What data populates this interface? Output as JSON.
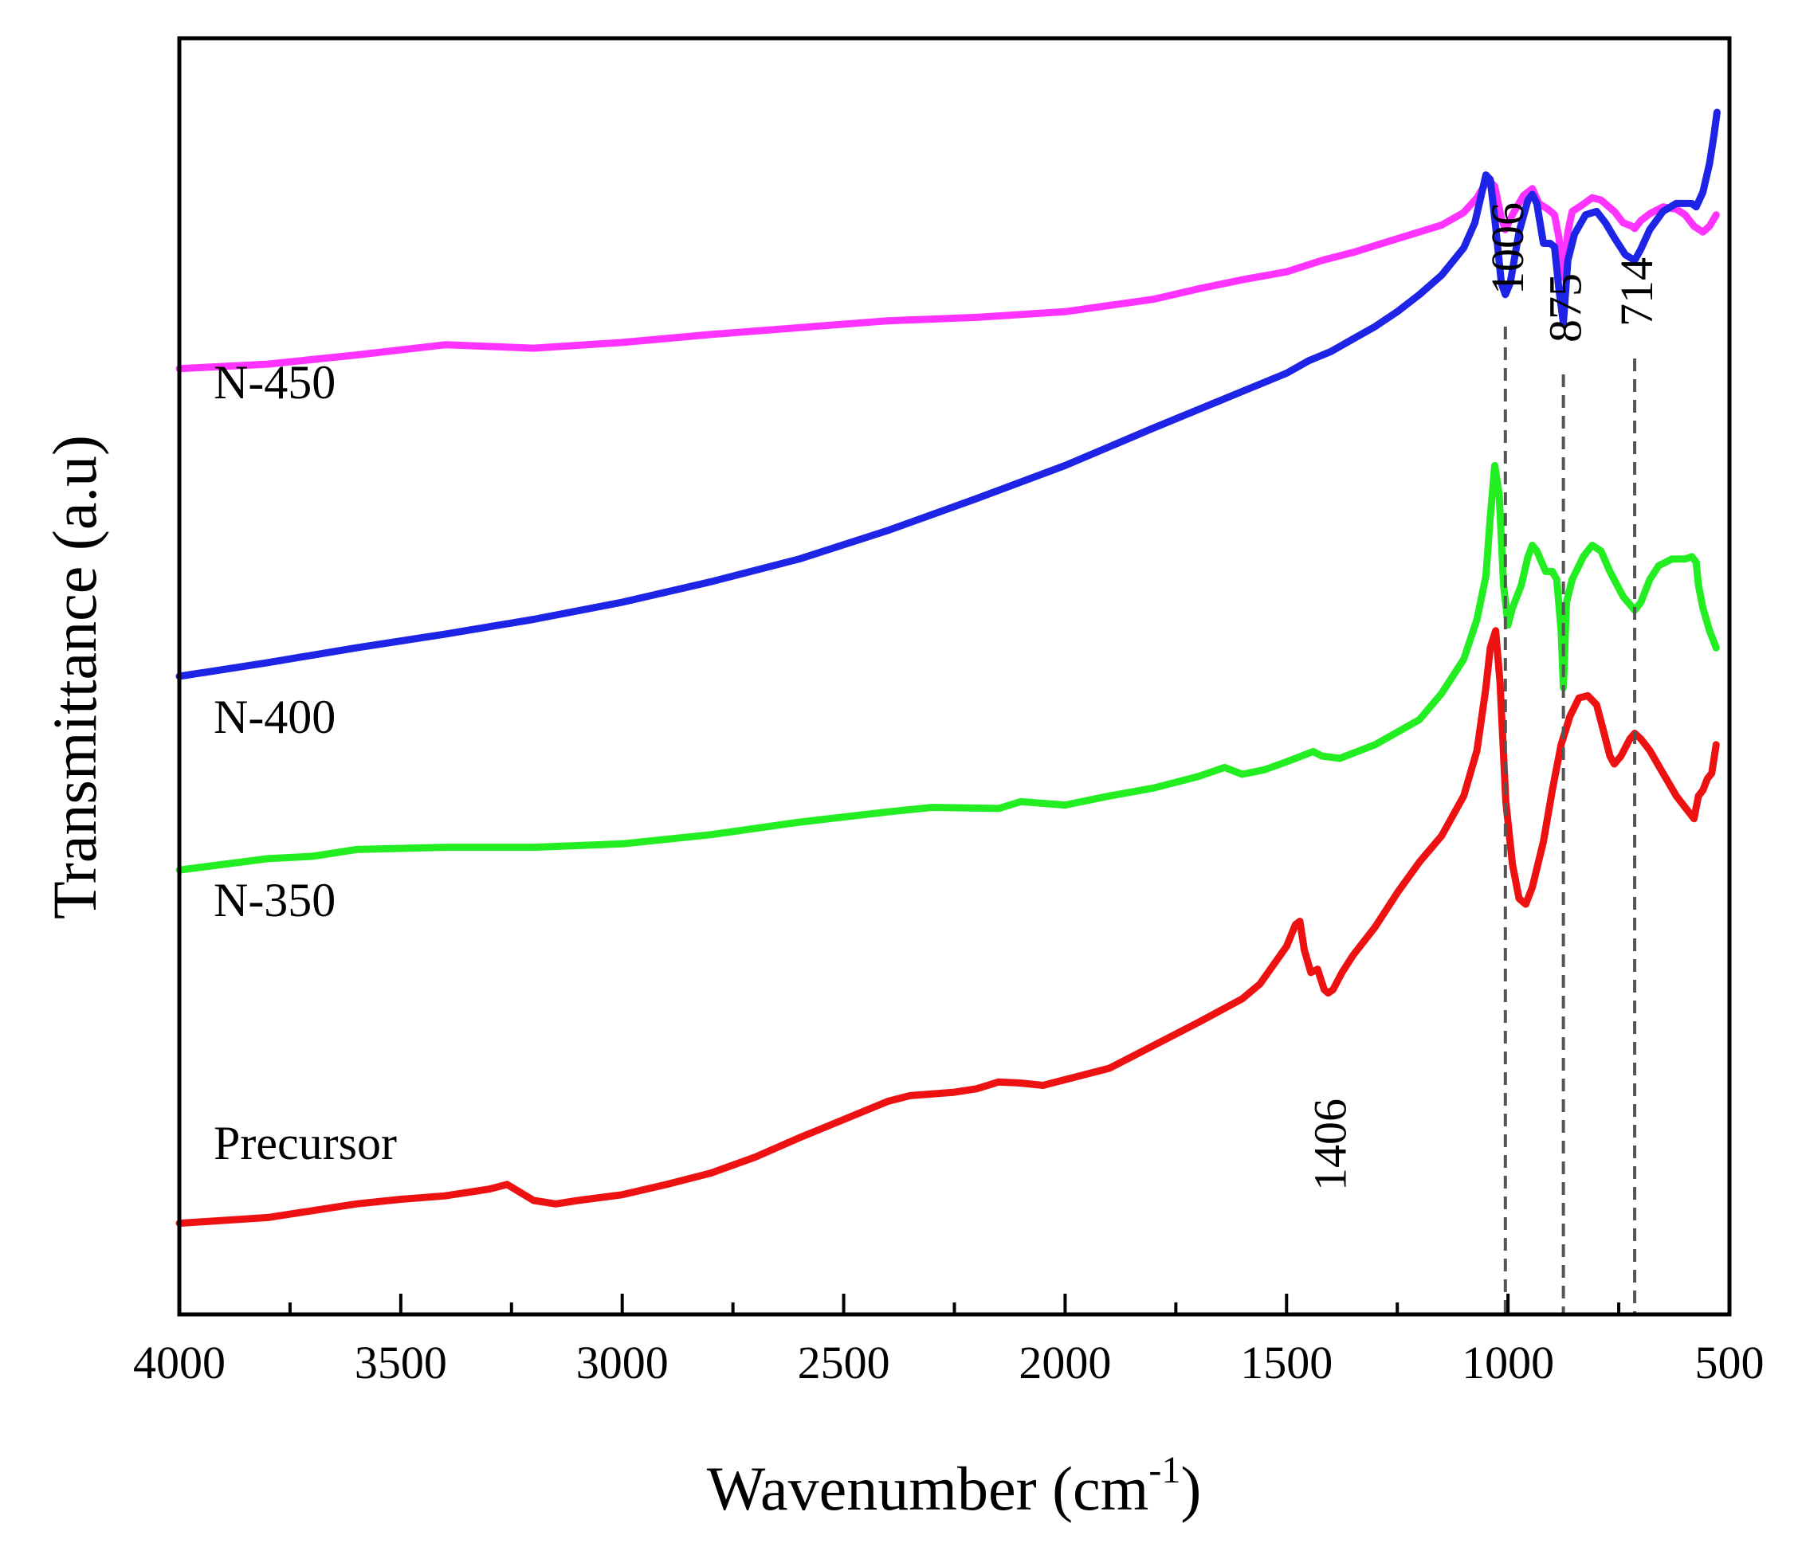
{
  "chart_data": {
    "type": "line",
    "title": "",
    "xlabel": "Wavenumber (cm",
    "xlabel_sup": "-1",
    "xlabel_tail": ")",
    "ylabel": "Transmittance (a.u)",
    "xlim": [
      4000,
      500
    ],
    "x_reversed": true,
    "y_ticks_shown": false,
    "x_ticks": [
      "4000",
      "3500",
      "3000",
      "2500",
      "2000",
      "1500",
      "1000",
      "500"
    ],
    "x_tick_values": [
      4000,
      3500,
      3000,
      2500,
      2000,
      1500,
      1000,
      500
    ],
    "grid": false,
    "legend": "inline labels at left",
    "series": [
      {
        "name": "N-450",
        "color": "#ff33ff",
        "points": [
          [
            4000,
            0.83
          ],
          [
            3800,
            0.834
          ],
          [
            3600,
            0.842
          ],
          [
            3400,
            0.851
          ],
          [
            3200,
            0.848
          ],
          [
            3000,
            0.853
          ],
          [
            2800,
            0.86
          ],
          [
            2600,
            0.866
          ],
          [
            2400,
            0.872
          ],
          [
            2200,
            0.875
          ],
          [
            2000,
            0.88
          ],
          [
            1800,
            0.891
          ],
          [
            1700,
            0.9
          ],
          [
            1600,
            0.908
          ],
          [
            1500,
            0.915
          ],
          [
            1420,
            0.925
          ],
          [
            1350,
            0.932
          ],
          [
            1250,
            0.944
          ],
          [
            1150,
            0.956
          ],
          [
            1100,
            0.967
          ],
          [
            1070,
            0.98
          ],
          [
            1045,
            0.996
          ],
          [
            1030,
            0.99
          ],
          [
            1015,
            0.962
          ],
          [
            1006,
            0.952
          ],
          [
            990,
            0.965
          ],
          [
            965,
            0.982
          ],
          [
            945,
            0.988
          ],
          [
            930,
            0.975
          ],
          [
            910,
            0.97
          ],
          [
            895,
            0.965
          ],
          [
            885,
            0.945
          ],
          [
            875,
            0.91
          ],
          [
            865,
            0.95
          ],
          [
            855,
            0.968
          ],
          [
            835,
            0.973
          ],
          [
            810,
            0.98
          ],
          [
            790,
            0.978
          ],
          [
            760,
            0.968
          ],
          [
            740,
            0.958
          ],
          [
            720,
            0.955
          ],
          [
            714,
            0.953
          ],
          [
            700,
            0.96
          ],
          [
            680,
            0.966
          ],
          [
            650,
            0.972
          ],
          [
            620,
            0.97
          ],
          [
            600,
            0.965
          ],
          [
            580,
            0.955
          ],
          [
            560,
            0.95
          ],
          [
            545,
            0.955
          ],
          [
            530,
            0.965
          ]
        ]
      },
      {
        "name": "N-400",
        "color": "#1d24e6",
        "points": [
          [
            4000,
            0.56
          ],
          [
            3800,
            0.572
          ],
          [
            3600,
            0.585
          ],
          [
            3400,
            0.597
          ],
          [
            3200,
            0.61
          ],
          [
            3000,
            0.625
          ],
          [
            2800,
            0.643
          ],
          [
            2600,
            0.663
          ],
          [
            2400,
            0.688
          ],
          [
            2200,
            0.716
          ],
          [
            2000,
            0.745
          ],
          [
            1800,
            0.778
          ],
          [
            1600,
            0.81
          ],
          [
            1500,
            0.826
          ],
          [
            1450,
            0.837
          ],
          [
            1400,
            0.845
          ],
          [
            1350,
            0.856
          ],
          [
            1300,
            0.867
          ],
          [
            1250,
            0.88
          ],
          [
            1200,
            0.895
          ],
          [
            1150,
            0.912
          ],
          [
            1100,
            0.936
          ],
          [
            1075,
            0.958
          ],
          [
            1060,
            0.983
          ],
          [
            1050,
            1.0
          ],
          [
            1040,
            0.996
          ],
          [
            1028,
            0.955
          ],
          [
            1015,
            0.905
          ],
          [
            1006,
            0.895
          ],
          [
            995,
            0.905
          ],
          [
            975,
            0.95
          ],
          [
            955,
            0.978
          ],
          [
            945,
            0.983
          ],
          [
            935,
            0.975
          ],
          [
            920,
            0.94
          ],
          [
            905,
            0.94
          ],
          [
            895,
            0.937
          ],
          [
            885,
            0.9
          ],
          [
            875,
            0.87
          ],
          [
            865,
            0.925
          ],
          [
            850,
            0.948
          ],
          [
            825,
            0.965
          ],
          [
            800,
            0.968
          ],
          [
            780,
            0.958
          ],
          [
            760,
            0.945
          ],
          [
            735,
            0.93
          ],
          [
            714,
            0.925
          ],
          [
            700,
            0.935
          ],
          [
            680,
            0.952
          ],
          [
            650,
            0.968
          ],
          [
            620,
            0.975
          ],
          [
            600,
            0.975
          ],
          [
            585,
            0.975
          ],
          [
            575,
            0.972
          ],
          [
            560,
            0.985
          ],
          [
            545,
            1.01
          ],
          [
            535,
            1.035
          ],
          [
            528,
            1.055
          ]
        ]
      },
      {
        "name": "N-350",
        "color": "#22ee22",
        "points": [
          [
            4000,
            0.39
          ],
          [
            3800,
            0.4
          ],
          [
            3700,
            0.402
          ],
          [
            3600,
            0.408
          ],
          [
            3400,
            0.41
          ],
          [
            3200,
            0.41
          ],
          [
            3000,
            0.413
          ],
          [
            2800,
            0.421
          ],
          [
            2600,
            0.432
          ],
          [
            2400,
            0.441
          ],
          [
            2300,
            0.445
          ],
          [
            2150,
            0.444
          ],
          [
            2100,
            0.45
          ],
          [
            2000,
            0.447
          ],
          [
            1900,
            0.455
          ],
          [
            1800,
            0.462
          ],
          [
            1700,
            0.472
          ],
          [
            1640,
            0.48
          ],
          [
            1600,
            0.474
          ],
          [
            1550,
            0.478
          ],
          [
            1500,
            0.485
          ],
          [
            1440,
            0.494
          ],
          [
            1420,
            0.49
          ],
          [
            1380,
            0.488
          ],
          [
            1300,
            0.5
          ],
          [
            1200,
            0.522
          ],
          [
            1150,
            0.545
          ],
          [
            1100,
            0.575
          ],
          [
            1070,
            0.61
          ],
          [
            1050,
            0.648
          ],
          [
            1040,
            0.7
          ],
          [
            1030,
            0.745
          ],
          [
            1020,
            0.72
          ],
          [
            1010,
            0.64
          ],
          [
            1000,
            0.605
          ],
          [
            990,
            0.62
          ],
          [
            970,
            0.64
          ],
          [
            955,
            0.665
          ],
          [
            945,
            0.675
          ],
          [
            935,
            0.67
          ],
          [
            915,
            0.652
          ],
          [
            900,
            0.652
          ],
          [
            890,
            0.645
          ],
          [
            880,
            0.6
          ],
          [
            875,
            0.55
          ],
          [
            868,
            0.625
          ],
          [
            855,
            0.645
          ],
          [
            830,
            0.665
          ],
          [
            810,
            0.675
          ],
          [
            790,
            0.67
          ],
          [
            770,
            0.652
          ],
          [
            740,
            0.63
          ],
          [
            714,
            0.618
          ],
          [
            700,
            0.625
          ],
          [
            680,
            0.645
          ],
          [
            660,
            0.657
          ],
          [
            630,
            0.663
          ],
          [
            600,
            0.663
          ],
          [
            585,
            0.665
          ],
          [
            575,
            0.66
          ],
          [
            570,
            0.64
          ],
          [
            560,
            0.62
          ],
          [
            545,
            0.6
          ],
          [
            530,
            0.585
          ]
        ]
      },
      {
        "name": "Precursor",
        "color": "#ee1111",
        "points": [
          [
            4000,
            0.08
          ],
          [
            3800,
            0.085
          ],
          [
            3600,
            0.097
          ],
          [
            3500,
            0.101
          ],
          [
            3400,
            0.104
          ],
          [
            3300,
            0.11
          ],
          [
            3260,
            0.114
          ],
          [
            3200,
            0.1
          ],
          [
            3150,
            0.097
          ],
          [
            3100,
            0.1
          ],
          [
            3000,
            0.105
          ],
          [
            2900,
            0.114
          ],
          [
            2800,
            0.124
          ],
          [
            2700,
            0.138
          ],
          [
            2600,
            0.155
          ],
          [
            2500,
            0.171
          ],
          [
            2400,
            0.187
          ],
          [
            2350,
            0.192
          ],
          [
            2250,
            0.195
          ],
          [
            2200,
            0.198
          ],
          [
            2150,
            0.204
          ],
          [
            2100,
            0.203
          ],
          [
            2050,
            0.201
          ],
          [
            1900,
            0.216
          ],
          [
            1800,
            0.236
          ],
          [
            1700,
            0.256
          ],
          [
            1600,
            0.277
          ],
          [
            1560,
            0.29
          ],
          [
            1500,
            0.323
          ],
          [
            1480,
            0.342
          ],
          [
            1470,
            0.345
          ],
          [
            1460,
            0.32
          ],
          [
            1445,
            0.3
          ],
          [
            1430,
            0.303
          ],
          [
            1415,
            0.285
          ],
          [
            1406,
            0.282
          ],
          [
            1395,
            0.285
          ],
          [
            1375,
            0.3
          ],
          [
            1350,
            0.315
          ],
          [
            1300,
            0.34
          ],
          [
            1250,
            0.37
          ],
          [
            1200,
            0.397
          ],
          [
            1150,
            0.42
          ],
          [
            1100,
            0.455
          ],
          [
            1070,
            0.495
          ],
          [
            1050,
            0.55
          ],
          [
            1040,
            0.585
          ],
          [
            1028,
            0.6
          ],
          [
            1018,
            0.555
          ],
          [
            1005,
            0.45
          ],
          [
            990,
            0.395
          ],
          [
            975,
            0.365
          ],
          [
            960,
            0.36
          ],
          [
            945,
            0.375
          ],
          [
            920,
            0.415
          ],
          [
            900,
            0.46
          ],
          [
            880,
            0.5
          ],
          [
            860,
            0.525
          ],
          [
            840,
            0.541
          ],
          [
            820,
            0.543
          ],
          [
            800,
            0.535
          ],
          [
            785,
            0.513
          ],
          [
            770,
            0.49
          ],
          [
            760,
            0.483
          ],
          [
            745,
            0.49
          ],
          [
            725,
            0.505
          ],
          [
            714,
            0.51
          ],
          [
            700,
            0.505
          ],
          [
            680,
            0.495
          ],
          [
            650,
            0.475
          ],
          [
            620,
            0.455
          ],
          [
            600,
            0.445
          ],
          [
            580,
            0.435
          ],
          [
            570,
            0.455
          ],
          [
            560,
            0.46
          ],
          [
            550,
            0.47
          ],
          [
            540,
            0.475
          ],
          [
            530,
            0.5
          ]
        ]
      }
    ],
    "reference_lines": [
      {
        "x": 1006,
        "label": "1006"
      },
      {
        "x": 875,
        "label": "875"
      },
      {
        "x": 714,
        "label": "714"
      }
    ],
    "annotations": [
      {
        "x": 1406,
        "label": "1406"
      }
    ]
  }
}
